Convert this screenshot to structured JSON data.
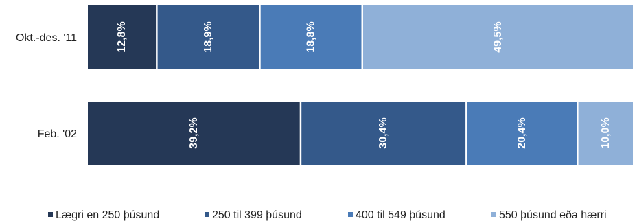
{
  "chart_data": {
    "type": "bar",
    "orientation": "horizontal",
    "stacked": true,
    "normalized": true,
    "categories": [
      "Okt.-des. '11",
      "Feb. '02"
    ],
    "series": [
      {
        "name": "Lægri en 250 þúsund",
        "values": [
          12.8,
          39.2
        ],
        "labels": [
          "12,8%",
          "39,2%"
        ],
        "color": "#253856"
      },
      {
        "name": "250 til 399 þúsund",
        "values": [
          18.9,
          30.4
        ],
        "labels": [
          "18,9%",
          "30,4%"
        ],
        "color": "#34598a"
      },
      {
        "name": "400 til 549 þúsund",
        "values": [
          18.8,
          20.4
        ],
        "labels": [
          "18,8%",
          "20,4%"
        ],
        "color": "#4a7bb7"
      },
      {
        "name": "550 þúsund eða hærri",
        "values": [
          49.5,
          10.0
        ],
        "labels": [
          "49,5%",
          "10,0%"
        ],
        "color": "#8fb0d8"
      }
    ],
    "xlim": [
      0,
      100
    ],
    "grid": false,
    "legend_position": "bottom"
  }
}
